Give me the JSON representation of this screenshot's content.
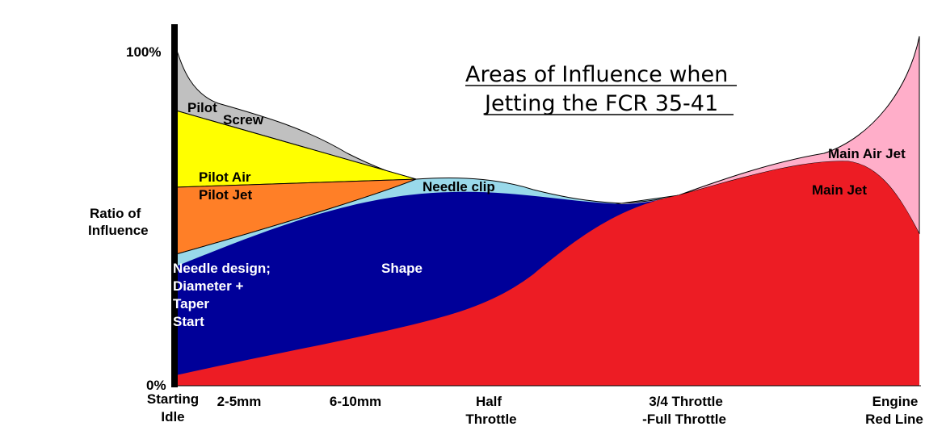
{
  "title": {
    "line1": "Areas of Influence when",
    "line2": "Jetting the FCR 35-41"
  },
  "y_axis": {
    "label_line1": "Ratio of",
    "label_line2": "Influence",
    "top_tick": "100%",
    "bottom_tick": "0%"
  },
  "x_ticks": {
    "idle_line1": "Starting",
    "idle_line2": "Idle",
    "t2_5": "2-5mm",
    "t6_10": "6-10mm",
    "half_line1": "Half",
    "half_line2": "Throttle",
    "full_line1": "3/4 Throttle",
    "full_line2": "-Full Throttle",
    "red_line1": "Engine",
    "red_line2": "Red Line"
  },
  "regions": {
    "pilot_screw_line1": "Pilot",
    "pilot_screw_line2": "Screw",
    "pilot_air": "Pilot Air",
    "pilot_jet": "Pilot Jet",
    "needle_clip": "Needle clip",
    "needle_design_line1": "Needle design;",
    "needle_design_line2": "Diameter +",
    "needle_design_line3": "Taper",
    "needle_design_line4": "Start",
    "shape": "Shape",
    "main_air_jet": "Main Air Jet",
    "main_jet": "Main Jet"
  },
  "colors": {
    "pilot_screw": "#c0c0c0",
    "pilot_air": "#ffff00",
    "pilot_jet": "#ff7f27",
    "needle_clip": "#99d9ea",
    "needle_shape": "#000099",
    "main_jet": "#ed1c24",
    "main_air_jet": "#ffaec9",
    "axis": "#000000"
  }
}
